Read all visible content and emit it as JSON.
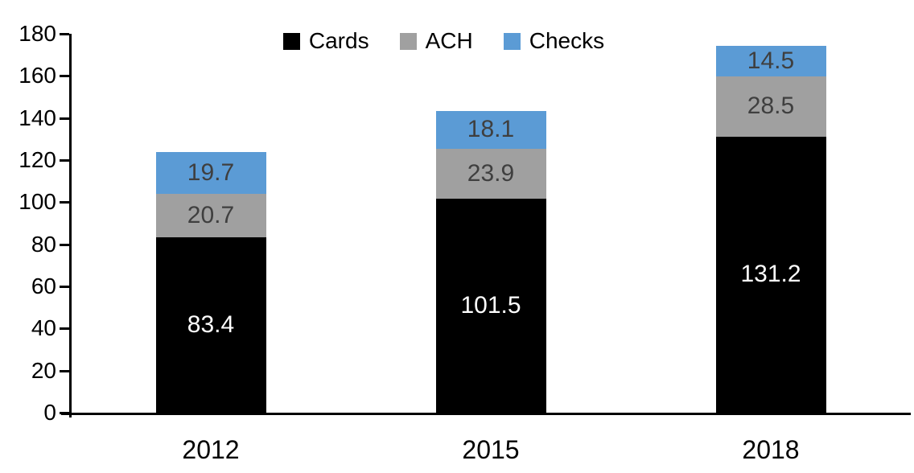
{
  "chart_data": {
    "type": "bar",
    "stacked": true,
    "title": "",
    "xlabel": "",
    "ylabel": "",
    "categories": [
      "2012",
      "2015",
      "2018"
    ],
    "series": [
      {
        "name": "Cards",
        "color": "#000000",
        "label_color": "#ffffff",
        "values": [
          83.4,
          101.5,
          131.2
        ]
      },
      {
        "name": "ACH",
        "color": "#A0A0A0",
        "label_color": "#3f3f3f",
        "values": [
          20.7,
          23.9,
          28.5
        ]
      },
      {
        "name": "Checks",
        "color": "#5B9BD5",
        "label_color": "#3f3f3f",
        "values": [
          19.7,
          18.1,
          14.5
        ]
      }
    ],
    "totals": [
      123.8,
      143.5,
      174.2
    ],
    "ylim": [
      0,
      180
    ],
    "yticks": [
      0,
      20,
      40,
      60,
      80,
      100,
      120,
      140,
      160,
      180
    ],
    "grid": false,
    "legend_position": "top",
    "legend_labels": [
      "Cards",
      "ACH",
      "Checks"
    ],
    "axis_color": "#000000",
    "data_labels_shown": true,
    "data_label_decimals": 1
  }
}
